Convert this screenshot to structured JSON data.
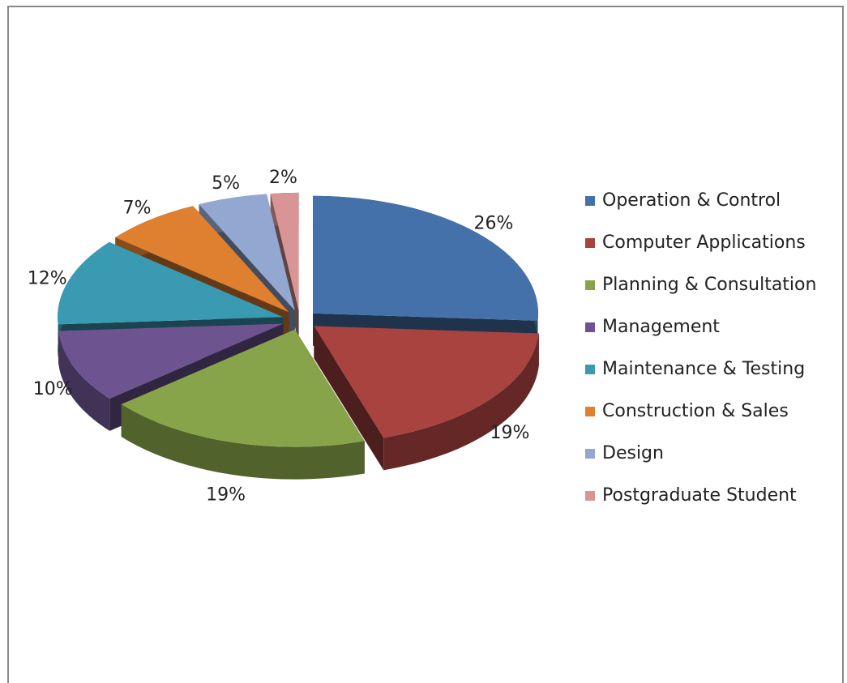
{
  "chart_data": {
    "type": "pie",
    "categories": [
      "Operation & Control",
      "Computer Applications",
      "Planning & Consultation",
      "Management",
      "Maintenance & Testing",
      "Construction & Sales",
      "Design",
      "Postgraduate Student"
    ],
    "values": [
      26,
      19,
      19,
      10,
      12,
      7,
      5,
      2
    ],
    "value_labels": [
      "26%",
      "19%",
      "19%",
      "10%",
      "12%",
      "7%",
      "5%",
      "2%"
    ],
    "colors": [
      "#4471a9",
      "#a84340",
      "#87a44a",
      "#6d5491",
      "#3a9ab1",
      "#df7f30",
      "#92a8d1",
      "#d99595"
    ],
    "legend": "right",
    "exploded": true,
    "three_d": true
  }
}
